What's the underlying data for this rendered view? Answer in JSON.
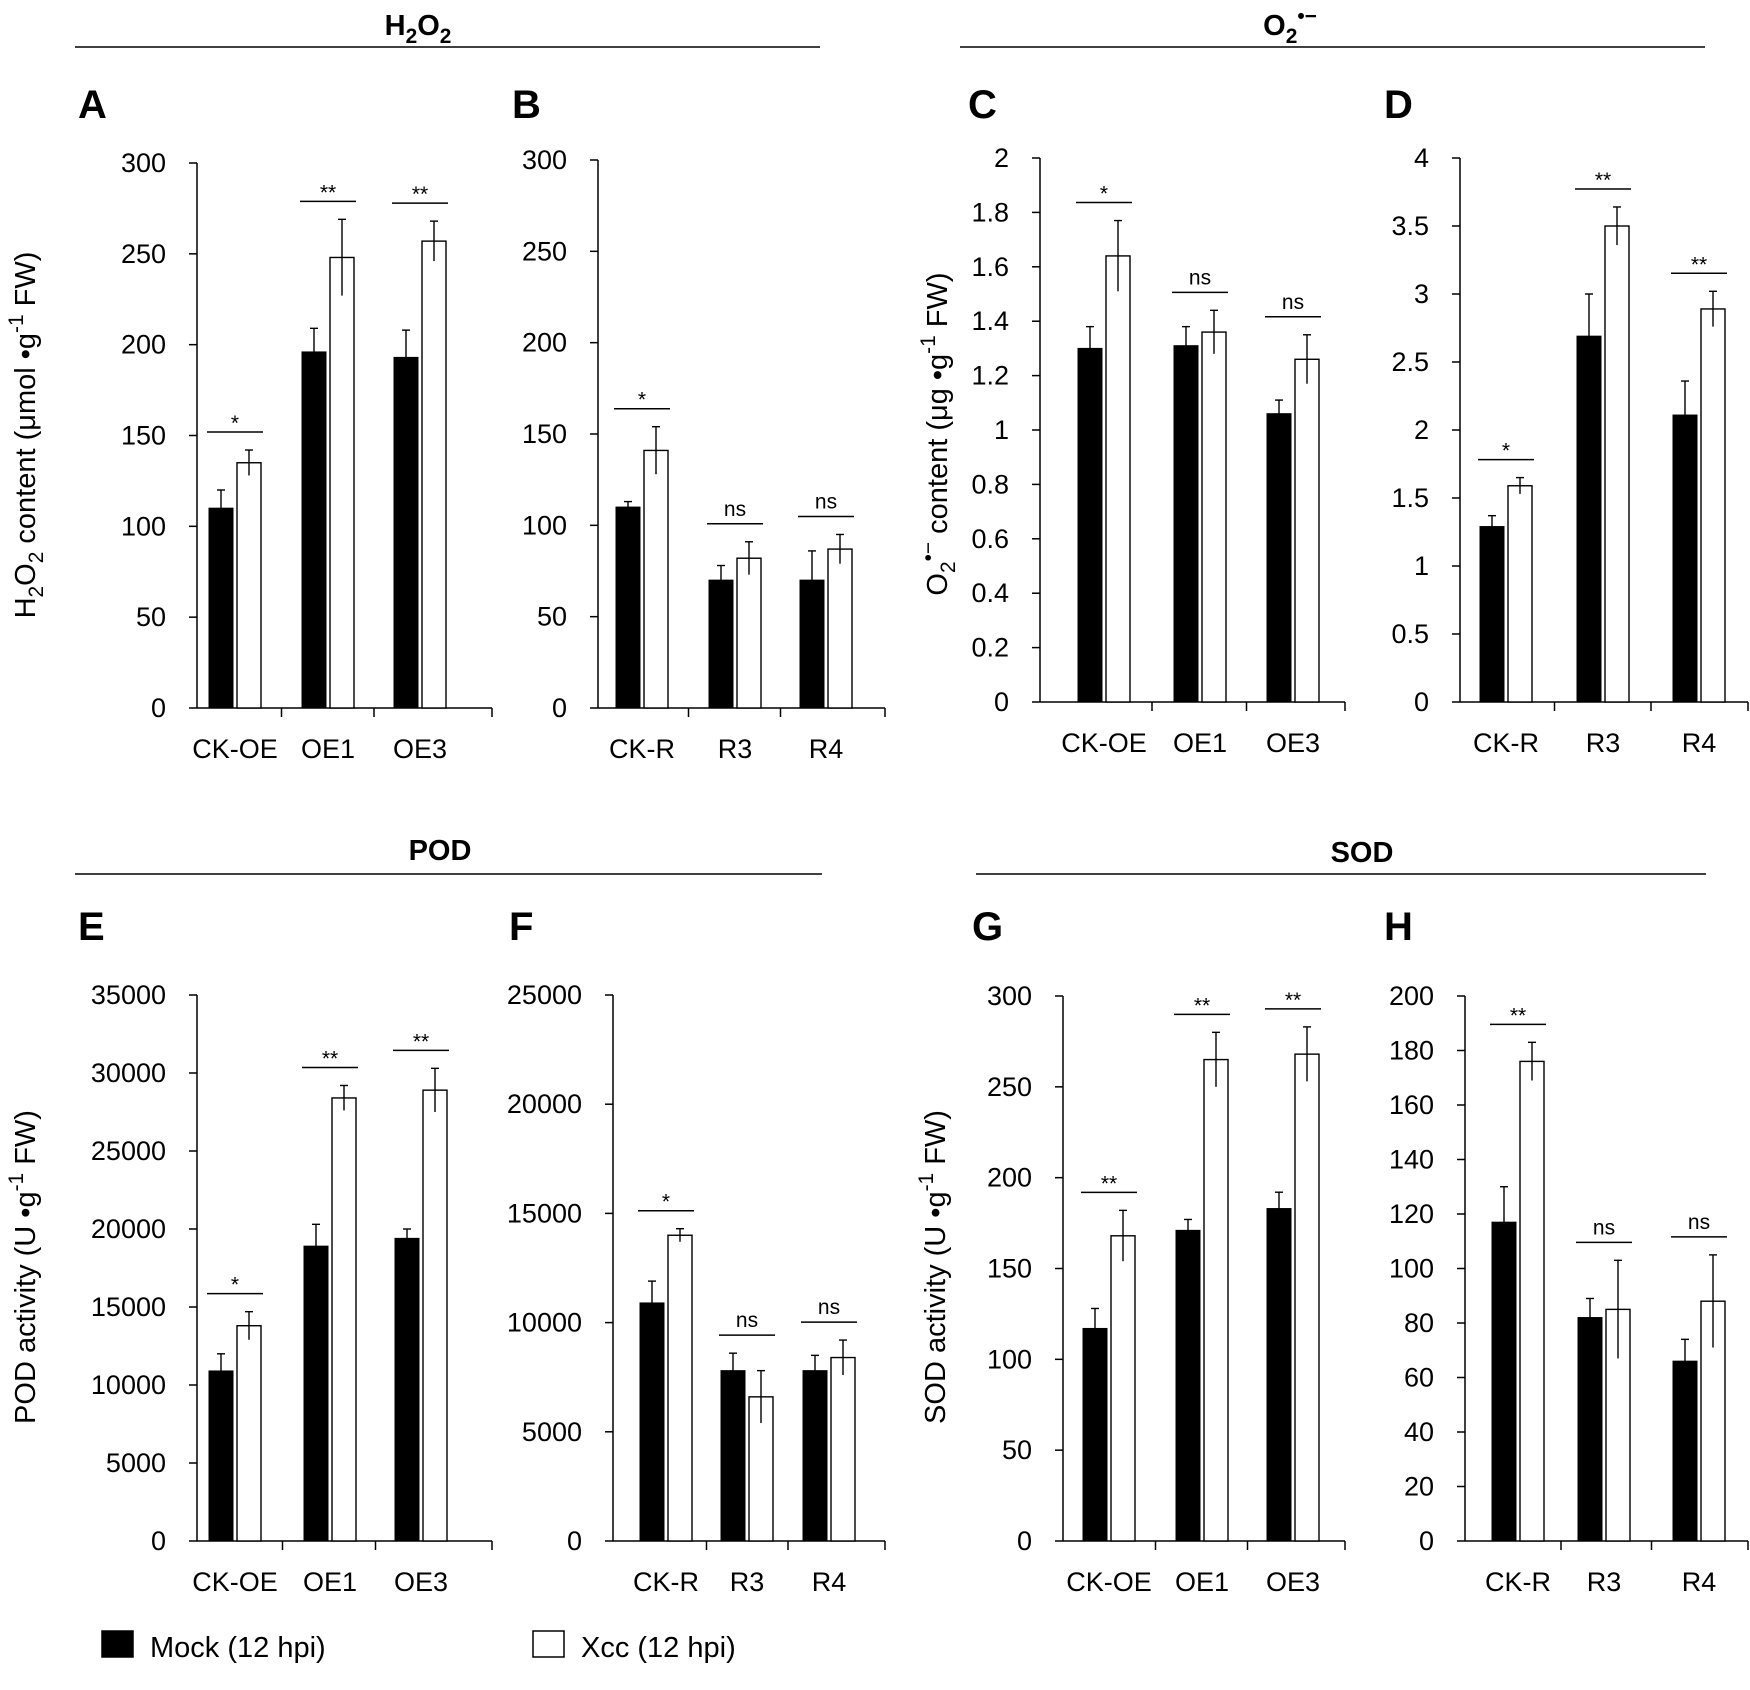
{
  "group_titles": [
    {
      "id": "h2o2",
      "parts": [
        {
          "t": "H"
        },
        {
          "t": "2",
          "sub": true
        },
        {
          "t": "O"
        },
        {
          "t": "2",
          "sub": true
        }
      ]
    },
    {
      "id": "o2",
      "parts": [
        {
          "t": "O"
        },
        {
          "t": "2",
          "sub": true
        },
        {
          "t": "•−",
          "sup": true
        }
      ]
    },
    {
      "id": "pod",
      "parts": [
        {
          "t": "POD"
        }
      ]
    },
    {
      "id": "sod",
      "parts": [
        {
          "t": "SOD"
        }
      ]
    }
  ],
  "legend": [
    {
      "label": "Mock  (12 hpi)",
      "fill": "#000000"
    },
    {
      "label": "Xcc  (12 hpi)",
      "fill": "#ffffff"
    }
  ],
  "colors": {
    "mock": "#000000",
    "xcc": "#ffffff",
    "outline": "#000000"
  },
  "chart_data": [
    {
      "panel": "A",
      "type": "bar",
      "categories": [
        "CK-OE",
        "OE1",
        "OE3"
      ],
      "ylim": [
        0,
        300
      ],
      "yticks": [
        0,
        50,
        100,
        150,
        200,
        250,
        300
      ],
      "ylabel": [
        {
          "t": "H"
        },
        {
          "t": "2",
          "sub": true
        },
        {
          "t": "O"
        },
        {
          "t": "2",
          "sub": true
        },
        {
          "t": " content (μmol •g"
        },
        {
          "t": "-1",
          "sup": true
        },
        {
          "t": " FW)"
        }
      ],
      "series": [
        {
          "name": "Mock  (12 hpi)",
          "values": [
            110,
            196,
            193
          ],
          "errors": [
            10,
            13,
            15
          ]
        },
        {
          "name": "Xcc  (12 hpi)",
          "values": [
            135,
            248,
            257
          ],
          "errors": [
            7,
            21,
            11
          ]
        }
      ],
      "significance": [
        "*",
        "**",
        "**"
      ]
    },
    {
      "panel": "B",
      "type": "bar",
      "categories": [
        "CK-R",
        "R3",
        "R4"
      ],
      "ylim": [
        0,
        300
      ],
      "yticks": [
        0,
        50,
        100,
        150,
        200,
        250,
        300
      ],
      "ylabel": [],
      "series": [
        {
          "name": "Mock  (12 hpi)",
          "values": [
            110,
            70,
            70
          ],
          "errors": [
            3,
            8,
            16
          ]
        },
        {
          "name": "Xcc  (12 hpi)",
          "values": [
            141,
            82,
            87
          ],
          "errors": [
            13,
            9,
            8
          ]
        }
      ],
      "significance": [
        "*",
        "ns",
        "ns"
      ]
    },
    {
      "panel": "C",
      "type": "bar",
      "categories": [
        "CK-OE",
        "OE1",
        "OE3"
      ],
      "ylim": [
        0,
        2
      ],
      "yticks": [
        0,
        0.2,
        0.4,
        0.6,
        0.8,
        1,
        1.2,
        1.4,
        1.6,
        1.8,
        2
      ],
      "ylabel": [
        {
          "t": "O"
        },
        {
          "t": "2",
          "sub": true
        },
        {
          "t": "•−",
          "sup": true
        },
        {
          "t": " content (μg •g"
        },
        {
          "t": "-1",
          "sup": true
        },
        {
          "t": " FW)"
        }
      ],
      "series": [
        {
          "name": "Mock  (12 hpi)",
          "values": [
            1.3,
            1.31,
            1.06
          ],
          "errors": [
            0.08,
            0.07,
            0.05
          ]
        },
        {
          "name": "Xcc  (12 hpi)",
          "values": [
            1.64,
            1.36,
            1.26
          ],
          "errors": [
            0.13,
            0.08,
            0.09
          ]
        }
      ],
      "significance": [
        "*",
        "ns",
        "ns"
      ]
    },
    {
      "panel": "D",
      "type": "bar",
      "categories": [
        "CK-R",
        "R3",
        "R4"
      ],
      "ylim": [
        0,
        4
      ],
      "yticks": [
        0,
        0.5,
        1,
        1.5,
        2,
        2.5,
        3,
        3.5,
        4
      ],
      "ylabel": [],
      "series": [
        {
          "name": "Mock  (12 hpi)",
          "values": [
            1.29,
            2.69,
            2.11
          ],
          "errors": [
            0.08,
            0.31,
            0.25
          ]
        },
        {
          "name": "Xcc  (12 hpi)",
          "values": [
            1.59,
            3.5,
            2.89
          ],
          "errors": [
            0.06,
            0.14,
            0.13
          ]
        }
      ],
      "significance": [
        "*",
        "**",
        "**"
      ]
    },
    {
      "panel": "E",
      "type": "bar",
      "categories": [
        "CK-OE",
        "OE1",
        "OE3"
      ],
      "ylim": [
        0,
        35000
      ],
      "yticks": [
        0,
        5000,
        10000,
        15000,
        20000,
        25000,
        30000,
        35000
      ],
      "ylabel": [
        {
          "t": "POD activity (U •g"
        },
        {
          "t": "-1",
          "sup": true
        },
        {
          "t": " FW)"
        }
      ],
      "series": [
        {
          "name": "Mock  (12 hpi)",
          "values": [
            10900,
            18900,
            19400
          ],
          "errors": [
            1100,
            1400,
            600
          ]
        },
        {
          "name": "Xcc  (12 hpi)",
          "values": [
            13800,
            28400,
            28900
          ],
          "errors": [
            900,
            800,
            1400
          ]
        }
      ],
      "significance": [
        "*",
        "**",
        "**"
      ]
    },
    {
      "panel": "F",
      "type": "bar",
      "categories": [
        "CK-R",
        "R3",
        "R4"
      ],
      "ylim": [
        0,
        25000
      ],
      "yticks": [
        0,
        5000,
        10000,
        15000,
        20000,
        25000
      ],
      "ylabel": [],
      "series": [
        {
          "name": "Mock  (12 hpi)",
          "values": [
            10900,
            7800,
            7800
          ],
          "errors": [
            1000,
            800,
            700
          ]
        },
        {
          "name": "Xcc  (12 hpi)",
          "values": [
            14000,
            6600,
            8400
          ],
          "errors": [
            300,
            1200,
            800
          ]
        }
      ],
      "significance": [
        "*",
        "ns",
        "ns"
      ]
    },
    {
      "panel": "G",
      "type": "bar",
      "categories": [
        "CK-OE",
        "OE1",
        "OE3"
      ],
      "ylim": [
        0,
        300
      ],
      "yticks": [
        0,
        50,
        100,
        150,
        200,
        250,
        300
      ],
      "ylabel": [
        {
          "t": "SOD activity (U •g"
        },
        {
          "t": "-1",
          "sup": true
        },
        {
          "t": " FW)"
        }
      ],
      "series": [
        {
          "name": "Mock  (12 hpi)",
          "values": [
            117,
            171,
            183
          ],
          "errors": [
            11,
            6,
            9
          ]
        },
        {
          "name": "Xcc  (12 hpi)",
          "values": [
            168,
            265,
            268
          ],
          "errors": [
            14,
            15,
            15
          ]
        }
      ],
      "significance": [
        "**",
        "**",
        "**"
      ]
    },
    {
      "panel": "H",
      "type": "bar",
      "categories": [
        "CK-R",
        "R3",
        "R4"
      ],
      "ylim": [
        0,
        200
      ],
      "yticks": [
        0,
        20,
        40,
        60,
        80,
        100,
        120,
        140,
        160,
        180,
        200
      ],
      "ylabel": [],
      "series": [
        {
          "name": "Mock  (12 hpi)",
          "values": [
            117,
            82,
            66
          ],
          "errors": [
            13,
            7,
            8
          ]
        },
        {
          "name": "Xcc  (12 hpi)",
          "values": [
            176,
            85,
            88
          ],
          "errors": [
            7,
            18,
            17
          ]
        }
      ],
      "significance": [
        "**",
        "ns",
        "ns"
      ]
    }
  ]
}
